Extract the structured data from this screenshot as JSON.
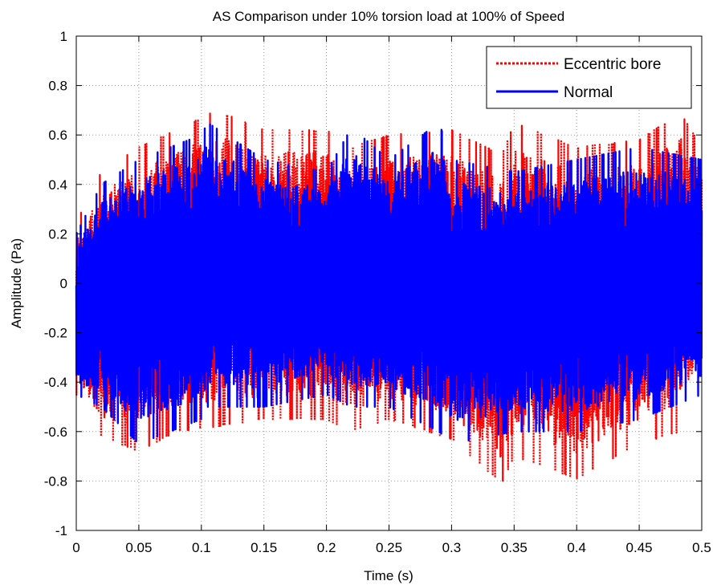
{
  "chart_data": {
    "type": "line",
    "title": "AS Comparison under 10% torsion load at 100% of Speed",
    "xlabel": "Time (s)",
    "ylabel": "Amplitude (Pa)",
    "xlim": [
      0,
      0.5
    ],
    "ylim": [
      -1,
      1
    ],
    "xticks": [
      "0",
      "0.05",
      "0.1",
      "0.15",
      "0.2",
      "0.25",
      "0.3",
      "0.35",
      "0.4",
      "0.45",
      "0.5"
    ],
    "yticks": [
      "-1",
      "-0.8",
      "-0.6",
      "-0.4",
      "-0.2",
      "0",
      "0.2",
      "0.4",
      "0.6",
      "0.8",
      "1"
    ],
    "grid": true,
    "legend_position": "top-right",
    "series": [
      {
        "name": "Eccentric bore",
        "color": "#ff0000",
        "style": "dotted",
        "envelope": {
          "x": [
            0,
            0.02,
            0.05,
            0.08,
            0.112,
            0.15,
            0.2,
            0.22,
            0.25,
            0.3,
            0.34,
            0.35,
            0.4,
            0.45,
            0.483,
            0.5
          ],
          "upper": [
            0.25,
            0.45,
            0.55,
            0.62,
            0.7,
            0.62,
            0.62,
            0.55,
            0.6,
            0.62,
            0.52,
            0.65,
            0.55,
            0.58,
            0.69,
            0.55
          ],
          "lower": [
            -0.45,
            -0.62,
            -0.68,
            -0.6,
            -0.58,
            -0.55,
            -0.55,
            -0.6,
            -0.55,
            -0.63,
            -0.81,
            -0.7,
            -0.79,
            -0.65,
            -0.6,
            -0.35
          ]
        }
      },
      {
        "name": "Normal",
        "color": "#0000ff",
        "style": "solid",
        "envelope": {
          "x": [
            0,
            0.02,
            0.05,
            0.1,
            0.105,
            0.15,
            0.2,
            0.22,
            0.25,
            0.29,
            0.3,
            0.35,
            0.4,
            0.45,
            0.5
          ],
          "upper": [
            0.2,
            0.4,
            0.5,
            0.6,
            0.65,
            0.5,
            0.45,
            0.63,
            0.5,
            0.65,
            0.5,
            0.45,
            0.5,
            0.55,
            0.5
          ],
          "lower": [
            -0.45,
            -0.5,
            -0.65,
            -0.55,
            -0.5,
            -0.5,
            -0.45,
            -0.5,
            -0.5,
            -0.6,
            -0.65,
            -0.6,
            -0.6,
            -0.55,
            -0.45
          ]
        }
      }
    ]
  }
}
